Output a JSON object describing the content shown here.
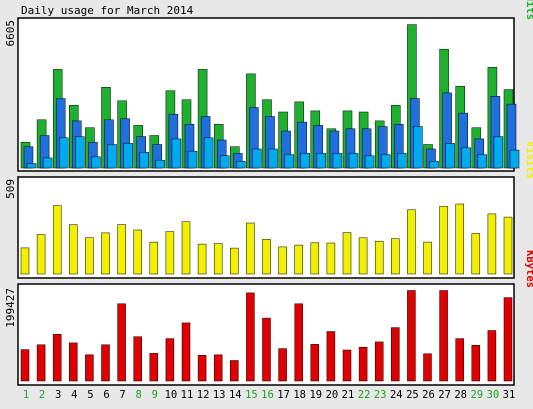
{
  "title": "Daily usage for March 2014",
  "panels": {
    "hits": {
      "max_label": "6605",
      "legend": [
        {
          "text": "Pages",
          "color": "#00AAEE"
        },
        {
          "text": "/",
          "color": "#00AAEE"
        },
        {
          "text": "Files",
          "color": "#1F6FDF"
        },
        {
          "text": "/",
          "color": "#1F6FDF"
        },
        {
          "text": "Hits",
          "color": "#20B030"
        }
      ]
    },
    "visits": {
      "max_label": "509",
      "legend": [
        {
          "text": "Visits",
          "color": "#F0F000"
        }
      ]
    },
    "kbytes": {
      "max_label": "199427",
      "legend": [
        {
          "text": "KBytes",
          "color": "#E00000"
        }
      ]
    }
  },
  "colors": {
    "hits": "#20B030",
    "files": "#1F6FDF",
    "pages": "#00AAEE",
    "visits": "#F0F000",
    "kbytes": "#E00000",
    "weekday_label": "#000000",
    "weekend_label": "#1FA01F",
    "panel_bg": "#FFFFFF",
    "page_bg": "#E8E8E8"
  },
  "chart_data": {
    "type": "bar",
    "title": "Daily usage for March 2014",
    "categories": [
      "1",
      "2",
      "3",
      "4",
      "5",
      "6",
      "7",
      "8",
      "9",
      "10",
      "11",
      "12",
      "13",
      "14",
      "15",
      "16",
      "17",
      "18",
      "19",
      "20",
      "21",
      "22",
      "23",
      "24",
      "25",
      "26",
      "27",
      "28",
      "29",
      "30",
      "31"
    ],
    "weekend_days": [
      "1",
      "2",
      "8",
      "9",
      "15",
      "16",
      "22",
      "23",
      "29",
      "30"
    ],
    "series": [
      {
        "name": "Hits",
        "values": [
          1150,
          2150,
          4400,
          2800,
          1800,
          3600,
          3000,
          1900,
          1450,
          3450,
          3050,
          4400,
          1950,
          950,
          4200,
          3050,
          2500,
          2950,
          2550,
          1750,
          2550,
          2500,
          2100,
          2800,
          6400,
          1050,
          5300,
          3650,
          1800,
          4500,
          3500
        ]
      },
      {
        "name": "Files",
        "values": [
          950,
          1450,
          3100,
          2100,
          1150,
          2150,
          2200,
          1400,
          1050,
          2400,
          1950,
          2300,
          1250,
          650,
          2700,
          2300,
          1650,
          2050,
          1900,
          1650,
          1750,
          1750,
          1850,
          1950,
          3100,
          850,
          3350,
          2450,
          1300,
          3200,
          2850
        ]
      },
      {
        "name": "Pages",
        "values": [
          200,
          450,
          1350,
          1400,
          500,
          1050,
          1100,
          700,
          350,
          1300,
          750,
          1350,
          550,
          300,
          850,
          850,
          600,
          650,
          650,
          650,
          650,
          550,
          600,
          650,
          1850,
          300,
          1100,
          900,
          600,
          1400,
          800
        ]
      },
      {
        "name": "Visits",
        "values": [
          140,
          211,
          366,
          264,
          195,
          220,
          264,
          236,
          171,
          227,
          280,
          160,
          163,
          139,
          273,
          186,
          145,
          155,
          167,
          166,
          222,
          194,
          176,
          189,
          344,
          171,
          362,
          375,
          217,
          322,
          305
        ]
      },
      {
        "name": "KBytes",
        "values": [
          66000,
          76000,
          98000,
          80000,
          55000,
          76000,
          162000,
          93000,
          58000,
          89000,
          122000,
          54000,
          55000,
          43000,
          185000,
          132000,
          68000,
          162000,
          77000,
          104000,
          65000,
          71000,
          82000,
          112000,
          190000,
          57000,
          190000,
          89000,
          75000,
          106000,
          175000
        ]
      }
    ],
    "ylim_hits": [
      0,
      6605
    ],
    "ylim_visits": [
      0,
      509
    ],
    "ylim_kbytes": [
      0,
      199427
    ],
    "legend_placement": "right, vertical text"
  }
}
